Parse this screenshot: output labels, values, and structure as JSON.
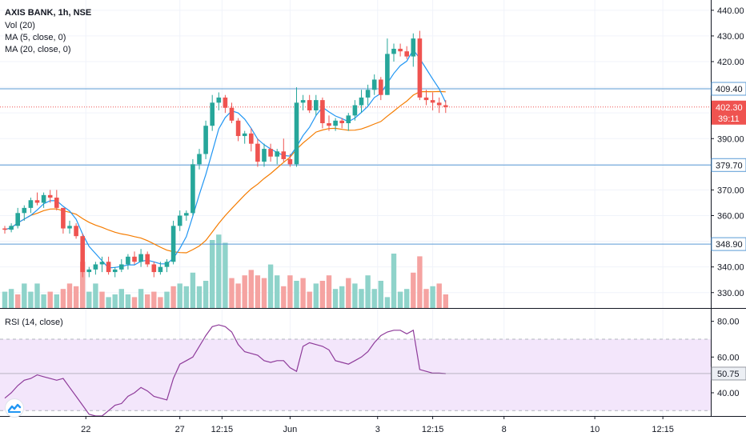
{
  "chart_data": {
    "title": "AXIS BANK, 1h, NSE",
    "indicators": [
      "Vol (20)",
      "MA (5, close, 0)",
      "MA (20, close, 0)"
    ],
    "rsi_label": "RSI (14, close)",
    "colors": {
      "up": "#26a69a",
      "down": "#ef5350",
      "vol_up": "#8fd3ca",
      "vol_down": "#f5a3a1",
      "ma5": "#2196f3",
      "ma20": "#f57c00",
      "rsi": "#8e3b9a",
      "rsi_band": "#f3e6fb",
      "hline": "#5b9bd5",
      "last_price": "#ef5350"
    },
    "x_tick_labels": [
      {
        "label": "22",
        "index": 12.5
      },
      {
        "label": "27",
        "index": 27
      },
      {
        "label": "12:15",
        "index": 33.5
      },
      {
        "label": "Jun",
        "index": 44
      },
      {
        "label": "3",
        "index": 57.5
      },
      {
        "label": "12:15",
        "index": 66
      },
      {
        "label": "8",
        "index": 77
      },
      {
        "label": "10",
        "index": 91
      },
      {
        "label": "12:15",
        "index": 101.5
      }
    ],
    "price_axis": {
      "ticks": [
        330,
        340,
        350,
        360,
        370,
        380,
        390,
        400,
        410,
        420,
        430,
        440
      ],
      "range": [
        324,
        444
      ]
    },
    "price_axis_labels": [
      "330.00",
      "340.00",
      "350.00",
      "360.00",
      "370.00",
      "380.00",
      "390.00",
      "400.00",
      "410.00",
      "420.00",
      "430.00",
      "440.00"
    ],
    "horizontal_lines": [
      {
        "value": 409.4,
        "label": "409.40"
      },
      {
        "value": 379.7,
        "label": "379.70"
      },
      {
        "value": 348.9,
        "label": "348.90"
      }
    ],
    "last_price": {
      "value": 402.3,
      "label": "402.30",
      "countdown": "39:11"
    },
    "rsi_axis": {
      "ticks": [
        40,
        60,
        80
      ],
      "labels": [
        "40.00",
        "60.00",
        "80.00"
      ],
      "range": [
        27,
        87
      ],
      "band": [
        30,
        70
      ]
    },
    "rsi_last": {
      "value": 50.75,
      "label": "50.75"
    },
    "candles": [
      [
        355,
        356,
        353,
        354.5
      ],
      [
        354.5,
        357,
        353.5,
        356
      ],
      [
        356,
        363,
        355,
        361
      ],
      [
        361,
        364,
        358,
        363
      ],
      [
        363,
        367,
        361,
        366
      ],
      [
        366,
        369,
        364,
        365
      ],
      [
        365,
        369,
        363,
        368
      ],
      [
        368,
        370,
        365,
        367
      ],
      [
        367,
        370,
        362,
        363
      ],
      [
        363,
        363,
        353,
        355
      ],
      [
        355,
        358,
        353,
        356
      ],
      [
        356,
        357,
        351,
        352
      ],
      [
        352,
        353,
        336,
        338
      ],
      [
        338,
        340,
        336,
        339
      ],
      [
        339,
        342,
        337,
        341
      ],
      [
        341,
        344,
        338,
        342
      ],
      [
        342,
        344,
        337,
        338
      ],
      [
        338,
        340,
        336,
        339
      ],
      [
        339,
        343,
        338,
        341
      ],
      [
        341,
        345,
        339,
        344
      ],
      [
        344,
        346,
        341,
        342
      ],
      [
        342,
        347,
        340,
        345
      ],
      [
        345,
        346,
        340,
        341
      ],
      [
        341,
        342,
        336,
        338
      ],
      [
        338,
        342,
        337,
        340
      ],
      [
        340,
        343,
        338,
        342
      ],
      [
        342,
        358,
        341,
        356
      ],
      [
        356,
        362,
        354,
        360
      ],
      [
        360,
        362,
        358,
        361
      ],
      [
        361,
        382,
        360,
        380
      ],
      [
        380,
        386,
        378,
        384
      ],
      [
        384,
        397,
        382,
        395
      ],
      [
        395,
        407,
        393,
        404
      ],
      [
        404,
        408,
        401,
        406
      ],
      [
        406,
        407,
        400,
        402
      ],
      [
        402,
        404,
        396,
        397
      ],
      [
        397,
        398,
        389,
        391
      ],
      [
        391,
        393,
        388,
        392
      ],
      [
        392,
        394,
        385,
        388
      ],
      [
        388,
        390,
        379,
        381
      ],
      [
        381,
        388,
        379,
        386
      ],
      [
        386,
        388,
        381,
        383
      ],
      [
        383,
        386,
        380,
        385
      ],
      [
        385,
        390,
        381,
        382
      ],
      [
        382,
        384,
        379,
        380
      ],
      [
        380,
        410,
        379,
        404
      ],
      [
        404,
        407,
        401,
        405
      ],
      [
        405,
        407,
        400,
        401
      ],
      [
        401,
        407,
        399,
        405
      ],
      [
        405,
        406,
        394,
        396
      ],
      [
        396,
        399,
        393,
        395
      ],
      [
        395,
        398,
        393,
        397
      ],
      [
        397,
        398,
        394,
        396
      ],
      [
        396,
        400,
        393,
        399
      ],
      [
        399,
        405,
        397,
        403
      ],
      [
        403,
        409,
        400,
        406
      ],
      [
        406,
        411,
        403,
        409
      ],
      [
        409,
        415,
        407,
        413
      ],
      [
        413,
        414,
        405,
        407
      ],
      [
        407,
        429,
        407,
        423
      ],
      [
        423,
        427,
        420,
        425
      ],
      [
        425,
        427,
        422,
        424
      ],
      [
        424,
        426,
        421,
        422
      ],
      [
        422,
        431,
        418,
        429
      ],
      [
        429,
        432,
        405,
        406
      ],
      [
        406,
        409,
        403,
        405
      ],
      [
        405,
        408,
        401,
        404
      ],
      [
        404,
        406,
        400,
        403
      ],
      [
        403,
        405,
        400,
        402.3
      ]
    ],
    "volumes": [
      [
        6,
        1
      ],
      [
        7,
        1
      ],
      [
        5,
        0
      ],
      [
        9,
        1
      ],
      [
        6,
        1
      ],
      [
        9,
        1
      ],
      [
        5,
        1
      ],
      [
        6,
        0
      ],
      [
        5,
        1
      ],
      [
        7,
        0
      ],
      [
        9,
        0
      ],
      [
        8,
        0
      ],
      [
        17,
        0
      ],
      [
        6,
        1
      ],
      [
        9,
        1
      ],
      [
        6,
        0
      ],
      [
        4,
        1
      ],
      [
        5,
        1
      ],
      [
        7,
        1
      ],
      [
        5,
        1
      ],
      [
        4,
        0
      ],
      [
        7,
        1
      ],
      [
        5,
        0
      ],
      [
        6,
        0
      ],
      [
        4,
        0
      ],
      [
        6,
        1
      ],
      [
        8,
        0
      ],
      [
        9,
        1
      ],
      [
        8,
        1
      ],
      [
        13,
        1
      ],
      [
        8,
        1
      ],
      [
        10,
        1
      ],
      [
        25,
        1
      ],
      [
        27,
        1
      ],
      [
        24,
        1
      ],
      [
        11,
        0
      ],
      [
        9,
        0
      ],
      [
        12,
        0
      ],
      [
        14,
        0
      ],
      [
        12,
        0
      ],
      [
        11,
        0
      ],
      [
        16,
        1
      ],
      [
        12,
        1
      ],
      [
        8,
        0
      ],
      [
        12,
        0
      ],
      [
        10,
        1
      ],
      [
        11,
        0
      ],
      [
        6,
        0
      ],
      [
        9,
        1
      ],
      [
        10,
        0
      ],
      [
        12,
        0
      ],
      [
        7,
        1
      ],
      [
        8,
        1
      ],
      [
        11,
        0
      ],
      [
        9,
        1
      ],
      [
        7,
        1
      ],
      [
        12,
        1
      ],
      [
        7,
        1
      ],
      [
        10,
        1
      ],
      [
        4,
        1
      ],
      [
        20,
        1
      ],
      [
        6,
        1
      ],
      [
        7,
        1
      ],
      [
        13,
        0
      ],
      [
        19,
        0
      ],
      [
        7,
        0
      ],
      [
        8,
        1
      ],
      [
        9,
        0
      ],
      [
        5,
        0
      ]
    ],
    "rsi": [
      37,
      40,
      44,
      47,
      48,
      50,
      49,
      48,
      47,
      48,
      43,
      38,
      33,
      28,
      27,
      27,
      30,
      33,
      34,
      38,
      40,
      43,
      41,
      38,
      37,
      36,
      48,
      56,
      58,
      60,
      66,
      72,
      77,
      78,
      77,
      74,
      67,
      63,
      62,
      61,
      58,
      57,
      58,
      58,
      54,
      52,
      66,
      68,
      67,
      66,
      64,
      58,
      57,
      56,
      58,
      60,
      63,
      68,
      72,
      74,
      75,
      75,
      73,
      75,
      53,
      52,
      51,
      51,
      50.75
    ]
  }
}
